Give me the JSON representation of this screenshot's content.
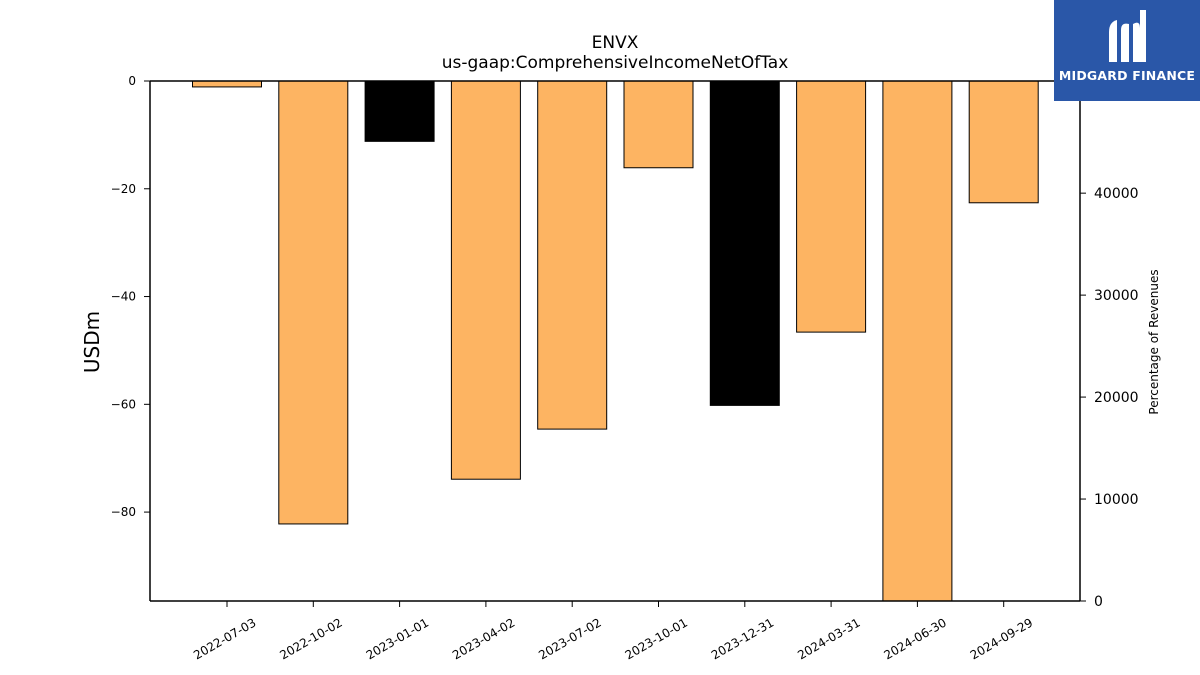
{
  "chart_data": {
    "type": "bar",
    "title": "ENVX",
    "subtitle": "us-gaap:ComprehensiveIncomeNetOfTax",
    "ylabel": "USDm",
    "y2label": "Percentage of Revenues",
    "ylim": [
      -96.5,
      0
    ],
    "y2lim": [
      0,
      51000
    ],
    "yticks": [
      0,
      -20,
      -40,
      -60,
      -80
    ],
    "y2ticks": [
      0,
      10000,
      20000,
      30000,
      40000
    ],
    "categories": [
      "2022-07-03",
      "2022-10-02",
      "2023-01-01",
      "2023-04-02",
      "2023-07-02",
      "2023-10-01",
      "2023-12-31",
      "2024-03-31",
      "2024-06-30",
      "2024-09-29"
    ],
    "values": [
      -1.1,
      -82.2,
      -11.2,
      -73.9,
      -64.6,
      -16.1,
      -60.2,
      -46.6,
      -96.5,
      -22.6
    ],
    "bar_colors": [
      "#fdb462",
      "#fdb462",
      "#000000",
      "#fdb462",
      "#fdb462",
      "#fdb462",
      "#000000",
      "#fdb462",
      "#fdb462",
      "#fdb462"
    ]
  },
  "logo": {
    "text": "MIDGARD FINANCE",
    "bg": "#2a57a8"
  }
}
